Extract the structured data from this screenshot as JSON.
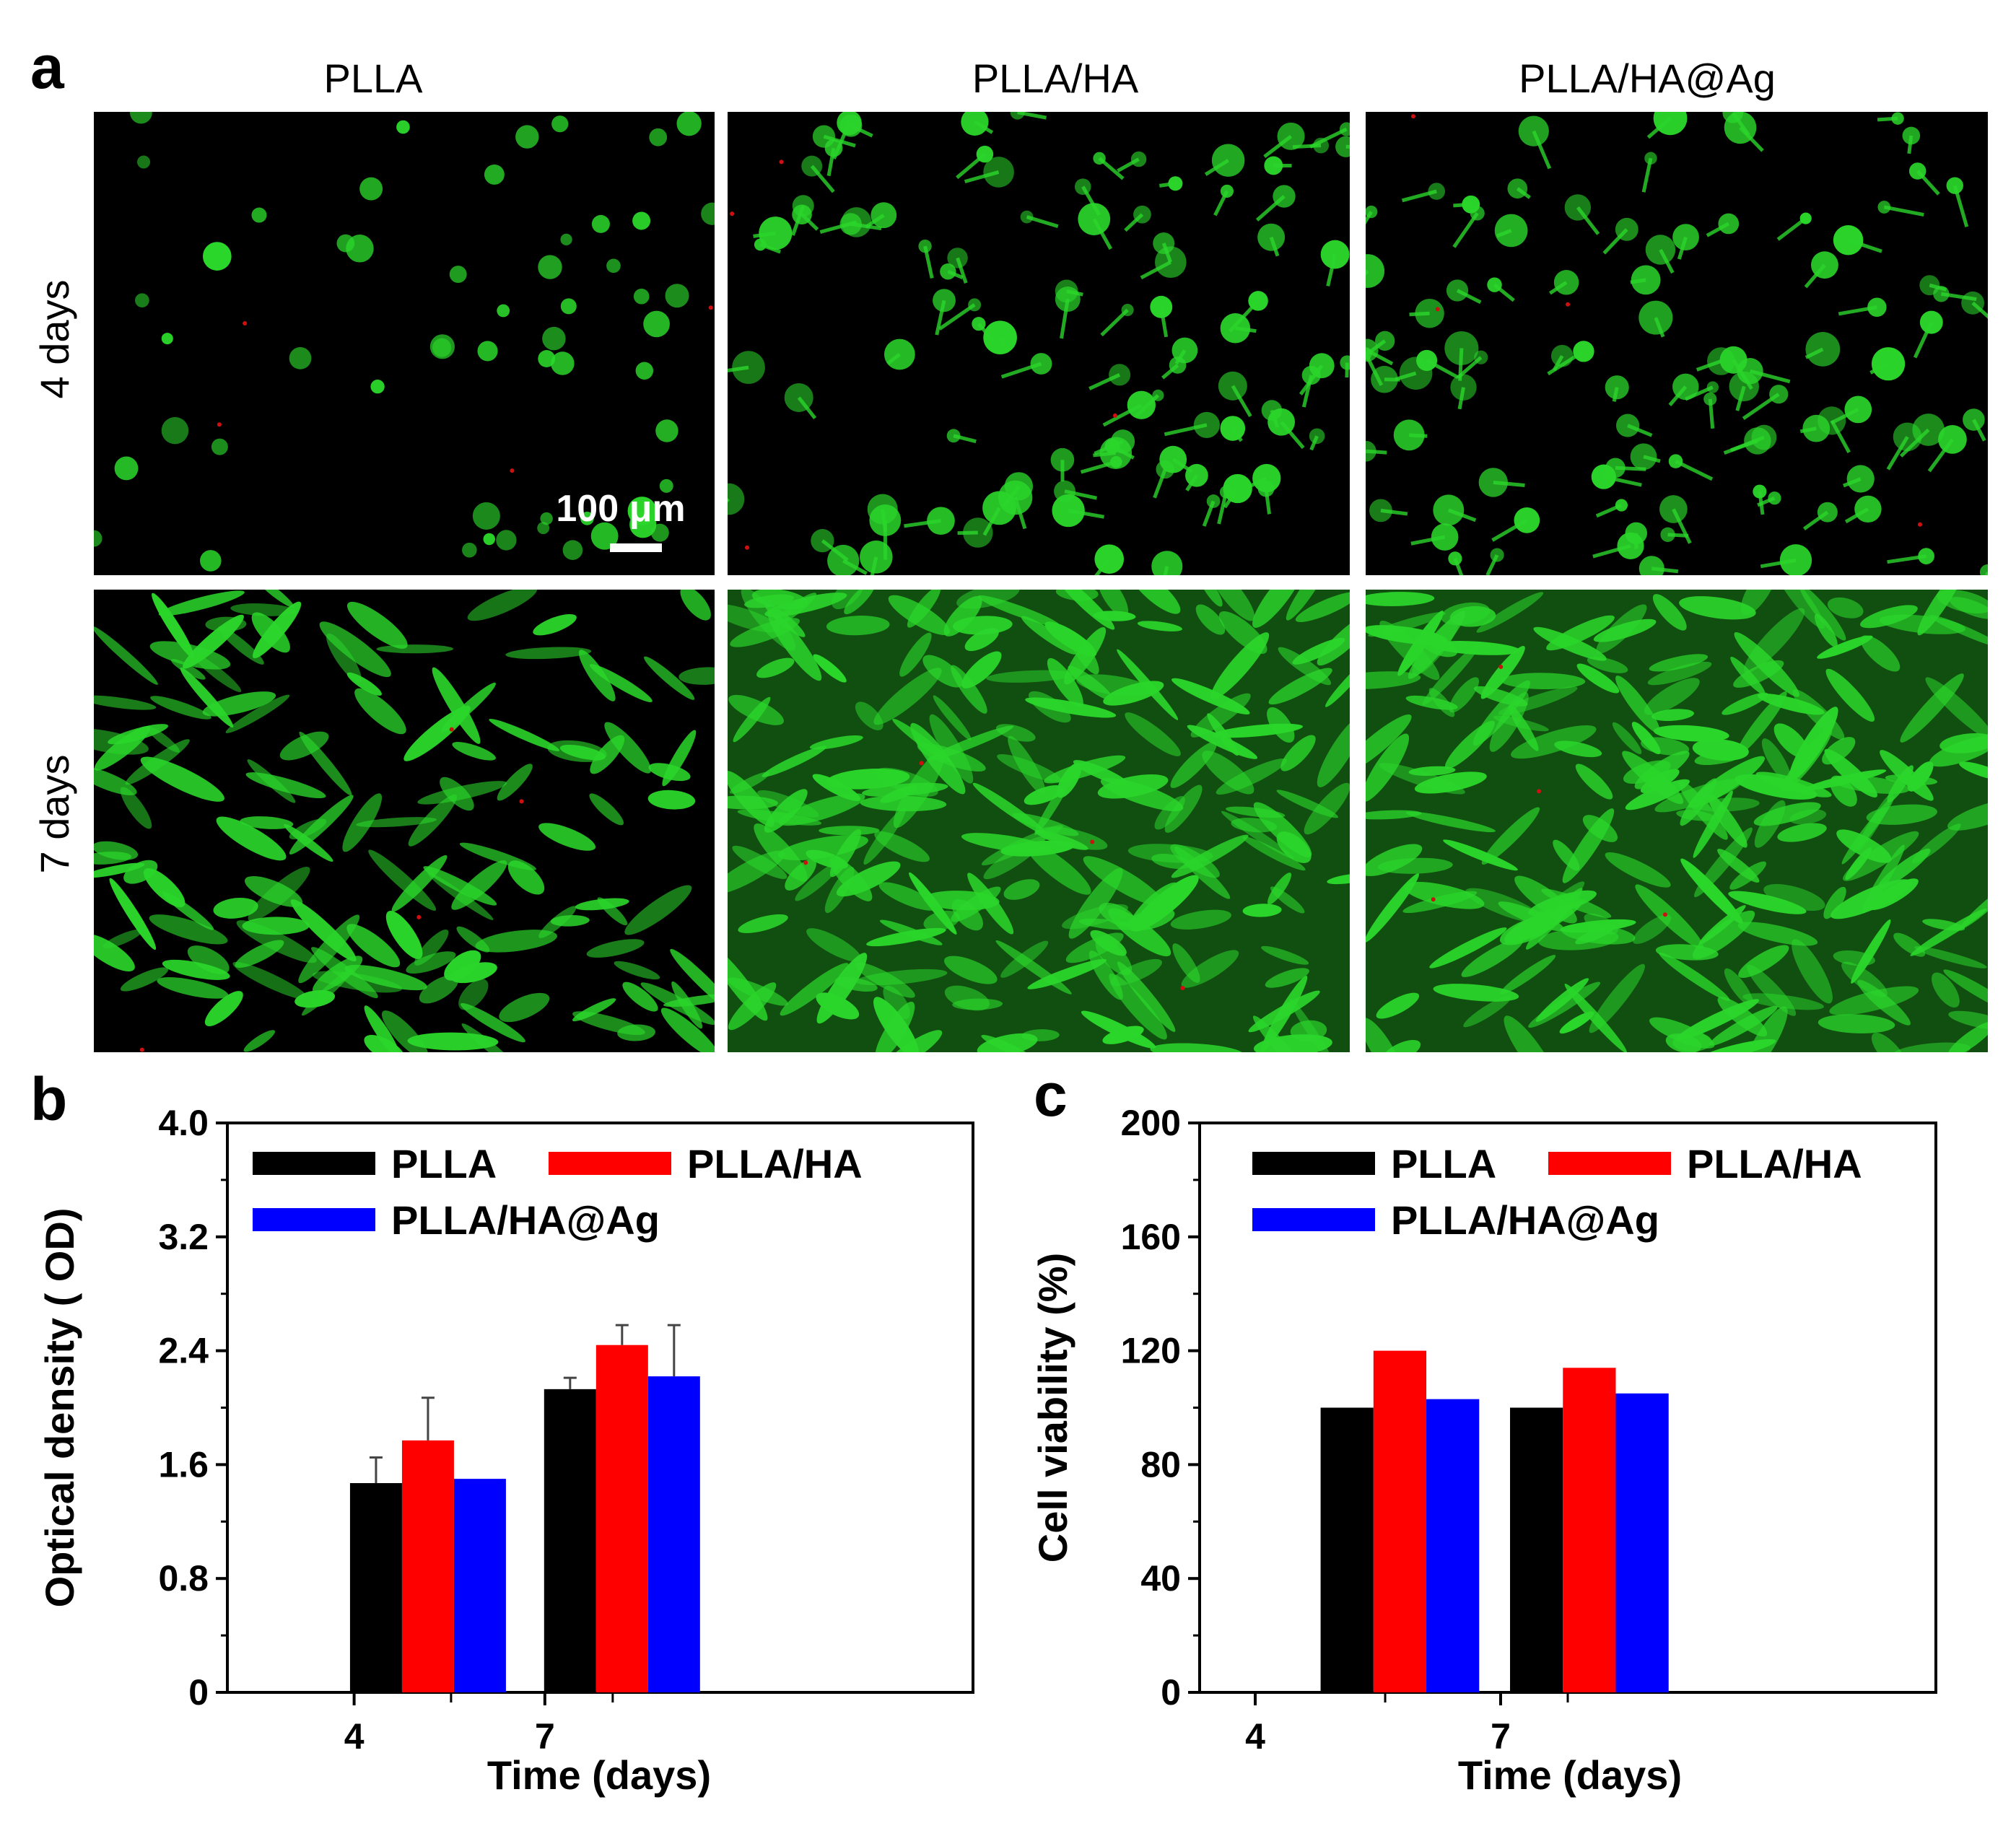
{
  "panel_a": {
    "label": "a",
    "columns": [
      "PLLA",
      "PLLA/HA",
      "PLLA/HA@Ag"
    ],
    "rows": [
      "4 days",
      "7 days"
    ],
    "scale_bar": "100 μm",
    "colors": {
      "background": "#000000",
      "live_stain": "#2bd62b",
      "dead_stain": "#d01010"
    }
  },
  "panel_b": {
    "label": "b"
  },
  "panel_c": {
    "label": "c"
  },
  "chart_data": [
    {
      "type": "bar",
      "categories": [
        "4",
        "7"
      ],
      "series": [
        {
          "name": "PLLA",
          "values": [
            1.47,
            2.13
          ],
          "errors": [
            0.18,
            0.08
          ],
          "color": "#000000"
        },
        {
          "name": "PLLA/HA",
          "values": [
            1.77,
            2.44
          ],
          "errors": [
            0.3,
            0.14
          ],
          "color": "#ff0000"
        },
        {
          "name": "PLLA/HA@Ag",
          "values": [
            1.5,
            2.22
          ],
          "errors": [
            0.0,
            0.36
          ],
          "color": "#0000ff"
        }
      ],
      "xlabel": "Time (days)",
      "ylabel": "Optical density ( OD)",
      "ylim": [
        0,
        4.0
      ],
      "yticks": [
        "0",
        "0.8",
        "1.6",
        "2.4",
        "3.2",
        "4.0"
      ],
      "legend": "top-left",
      "grid": false
    },
    {
      "type": "bar",
      "categories": [
        "4",
        "7"
      ],
      "series": [
        {
          "name": "PLLA",
          "values": [
            100,
            100
          ],
          "color": "#000000"
        },
        {
          "name": "PLLA/HA",
          "values": [
            120,
            114
          ],
          "color": "#ff0000"
        },
        {
          "name": "PLLA/HA@Ag",
          "values": [
            103,
            105
          ],
          "color": "#0000ff"
        }
      ],
      "xlabel": "Time (days)",
      "ylabel": "Cell viability (%)",
      "ylim": [
        0,
        200
      ],
      "yticks": [
        "0",
        "40",
        "80",
        "120",
        "160",
        "200"
      ],
      "legend": "top-left",
      "grid": false
    }
  ]
}
